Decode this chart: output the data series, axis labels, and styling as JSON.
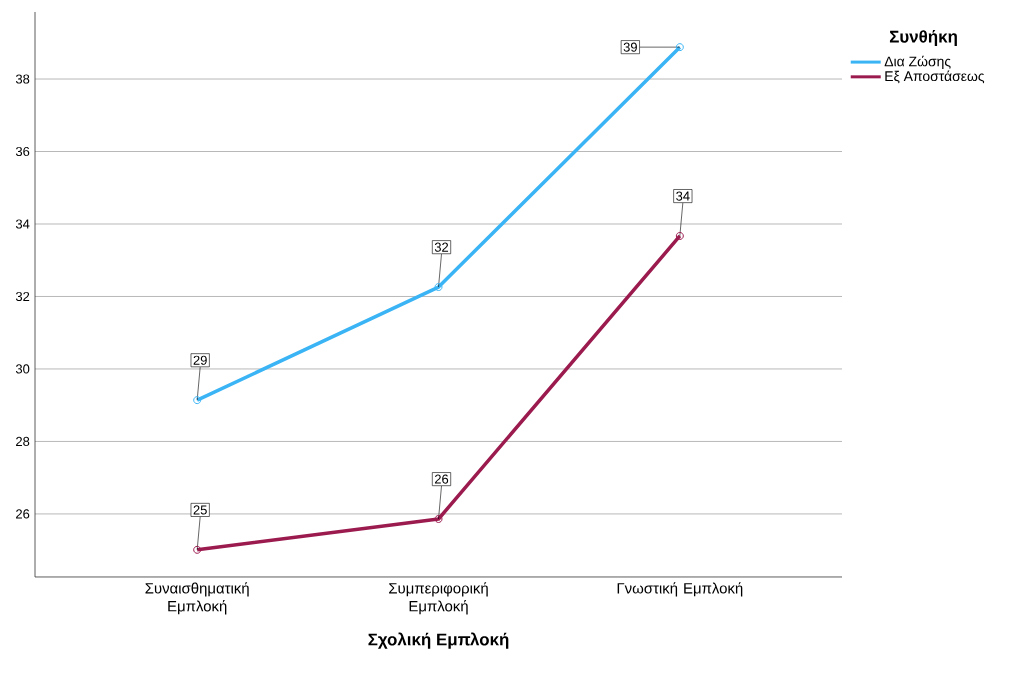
{
  "chart_data": {
    "type": "line",
    "xlabel": "Σχολική Εμπλοκή",
    "legend_title": "Συνθήκη",
    "categories": [
      "Συναισθηματική Εμπλοκή",
      "Συμπεριφορική Εμπλοκή",
      "Γνωστική Εμπλοκή"
    ],
    "series": [
      {
        "name": "Δια Ζώσης",
        "color": "#3ab4f5",
        "values": [
          29.14,
          32.26,
          38.88
        ],
        "value_labels": [
          "29",
          "32",
          "39"
        ]
      },
      {
        "name": "Εξ Αποστάσεως",
        "color": "#9b1b4f",
        "values": [
          25.01,
          25.86,
          33.67
        ],
        "value_labels": [
          "25",
          "26",
          "34"
        ]
      }
    ],
    "ylim": [
      24.26,
      39.85
    ],
    "yticks": [
      26,
      28,
      30,
      32,
      34,
      36,
      38
    ],
    "grid": "y",
    "legend": "top right",
    "marker": "circle",
    "line_style": "solid"
  }
}
